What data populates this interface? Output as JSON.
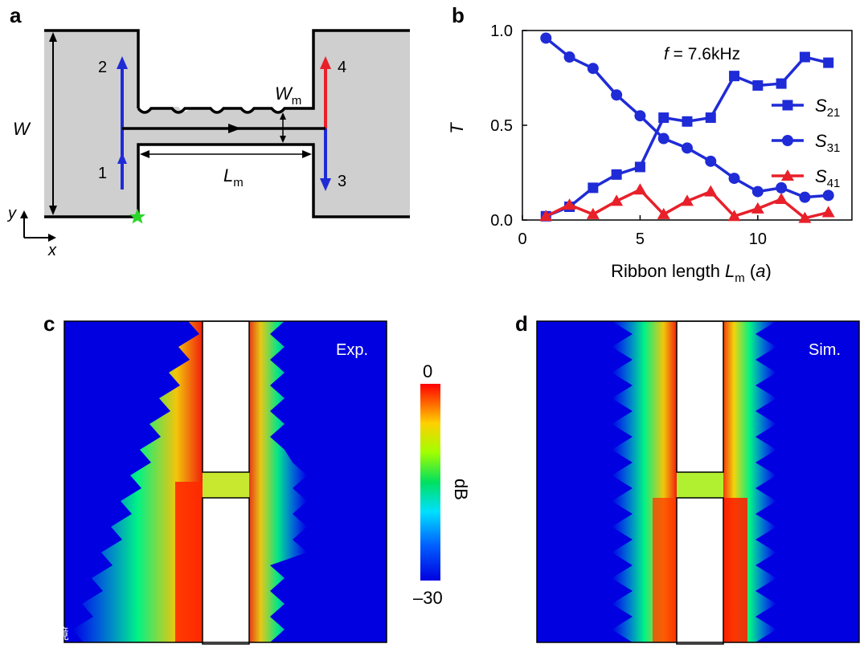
{
  "panels": {
    "a": "a",
    "b": "b",
    "c": "c",
    "d": "d"
  },
  "schematic": {
    "W": "W",
    "Wm": "W",
    "Wm_sub": "m",
    "Lm": "L",
    "Lm_sub": "m",
    "ports": [
      "1",
      "2",
      "3",
      "4"
    ],
    "axis_y": "y",
    "axis_x": "x",
    "colors": {
      "blue": "#1f2bd6",
      "red": "#e8202a",
      "gray": "#cfcfcf",
      "star": "#2bd62b"
    }
  },
  "chart_data": {
    "type": "line",
    "annotation_f": "f",
    "annotation_value": " = 7.6kHz",
    "xlabel_main": "Ribbon length ",
    "xlabel_L": "L",
    "xlabel_sub": "m",
    "xlabel_unit": "a",
    "ylabel": "T",
    "xlim": [
      0,
      14
    ],
    "ylim": [
      0,
      1
    ],
    "xticks": [
      0,
      5,
      10
    ],
    "yticks": [
      "0.0",
      "0.5",
      "1.0"
    ],
    "x": [
      1,
      2,
      3,
      4,
      5,
      6,
      7,
      8,
      9,
      10,
      11,
      12,
      13
    ],
    "series": [
      {
        "name": "S",
        "sub": "21",
        "marker": "square",
        "color": "#1f2bd6",
        "values": [
          0.02,
          0.07,
          0.17,
          0.24,
          0.28,
          0.54,
          0.52,
          0.54,
          0.76,
          0.71,
          0.72,
          0.86,
          0.83
        ]
      },
      {
        "name": "S",
        "sub": "31",
        "marker": "circle",
        "color": "#1f2bd6",
        "values": [
          0.96,
          0.86,
          0.8,
          0.66,
          0.55,
          0.43,
          0.38,
          0.31,
          0.22,
          0.15,
          0.17,
          0.12,
          0.13
        ]
      },
      {
        "name": "S",
        "sub": "41",
        "marker": "triangle",
        "color": "#e8202a",
        "values": [
          0.02,
          0.08,
          0.03,
          0.1,
          0.16,
          0.03,
          0.1,
          0.15,
          0.02,
          0.06,
          0.11,
          0.01,
          0.04
        ]
      }
    ]
  },
  "maps": {
    "c_label": "Exp.",
    "d_label": "Sim."
  },
  "colorbar": {
    "top": "0",
    "bottom": "–30",
    "unit": "dB"
  },
  "watermark": "大数跨境"
}
